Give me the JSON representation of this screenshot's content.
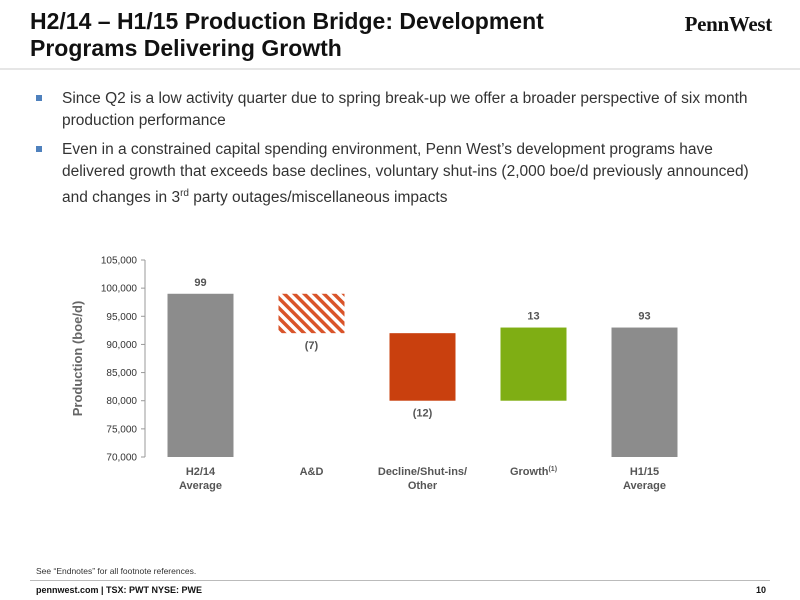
{
  "header": {
    "title_line1": "H2/14 – H1/15 Production Bridge: Development",
    "title_line2": "Programs Delivering Growth",
    "logo_text": "PennWest"
  },
  "bullets": [
    "Since Q2 is a low activity quarter due to spring break-up we offer a broader perspective of six month production performance",
    "Even in a constrained capital spending environment, Penn West’s development programs have delivered growth that exceeds base declines, voluntary shut-ins (2,000 boe/d previously announced) and changes in 3rd party outages/miscellaneous impacts"
  ],
  "chart_data": {
    "type": "bar",
    "subtype": "waterfall",
    "ylabel": "Production (boe/d)",
    "ylim": [
      70000,
      105000
    ],
    "ytick_step": 5000,
    "ytick_labels": [
      "70,000",
      "75,000",
      "80,000",
      "85,000",
      "90,000",
      "95,000",
      "100,000",
      "105,000"
    ],
    "categories": [
      {
        "line1": "H2/14",
        "line2": "Average",
        "sup": ""
      },
      {
        "line1": "A&D",
        "line2": "",
        "sup": ""
      },
      {
        "line1": "Decline/Shut-ins/",
        "line2": "Other",
        "sup": ""
      },
      {
        "line1": "Growth",
        "line2": "",
        "sup": "(1)"
      },
      {
        "line1": "H1/15",
        "line2": "Average",
        "sup": ""
      }
    ],
    "bars": [
      {
        "start": 70000,
        "end": 99000,
        "label": "99",
        "color": "#8c8c8c",
        "pattern": "solid",
        "label_position": "above"
      },
      {
        "start": 92000,
        "end": 99000,
        "label": "(7)",
        "color": "#d9542a",
        "pattern": "hatched",
        "label_position": "below"
      },
      {
        "start": 80000,
        "end": 92000,
        "label": "(12)",
        "color": "#c9400e",
        "pattern": "solid",
        "label_position": "below"
      },
      {
        "start": 80000,
        "end": 93000,
        "label": "13",
        "color": "#7fae14",
        "pattern": "solid",
        "label_position": "above"
      },
      {
        "start": 70000,
        "end": 93000,
        "label": "93",
        "color": "#8c8c8c",
        "pattern": "solid",
        "label_position": "above"
      }
    ]
  },
  "footnote": "See “Endnotes” for all footnote references.",
  "footer": {
    "text": "pennwest.com | TSX: PWT  NYSE: PWE",
    "page": "10"
  }
}
